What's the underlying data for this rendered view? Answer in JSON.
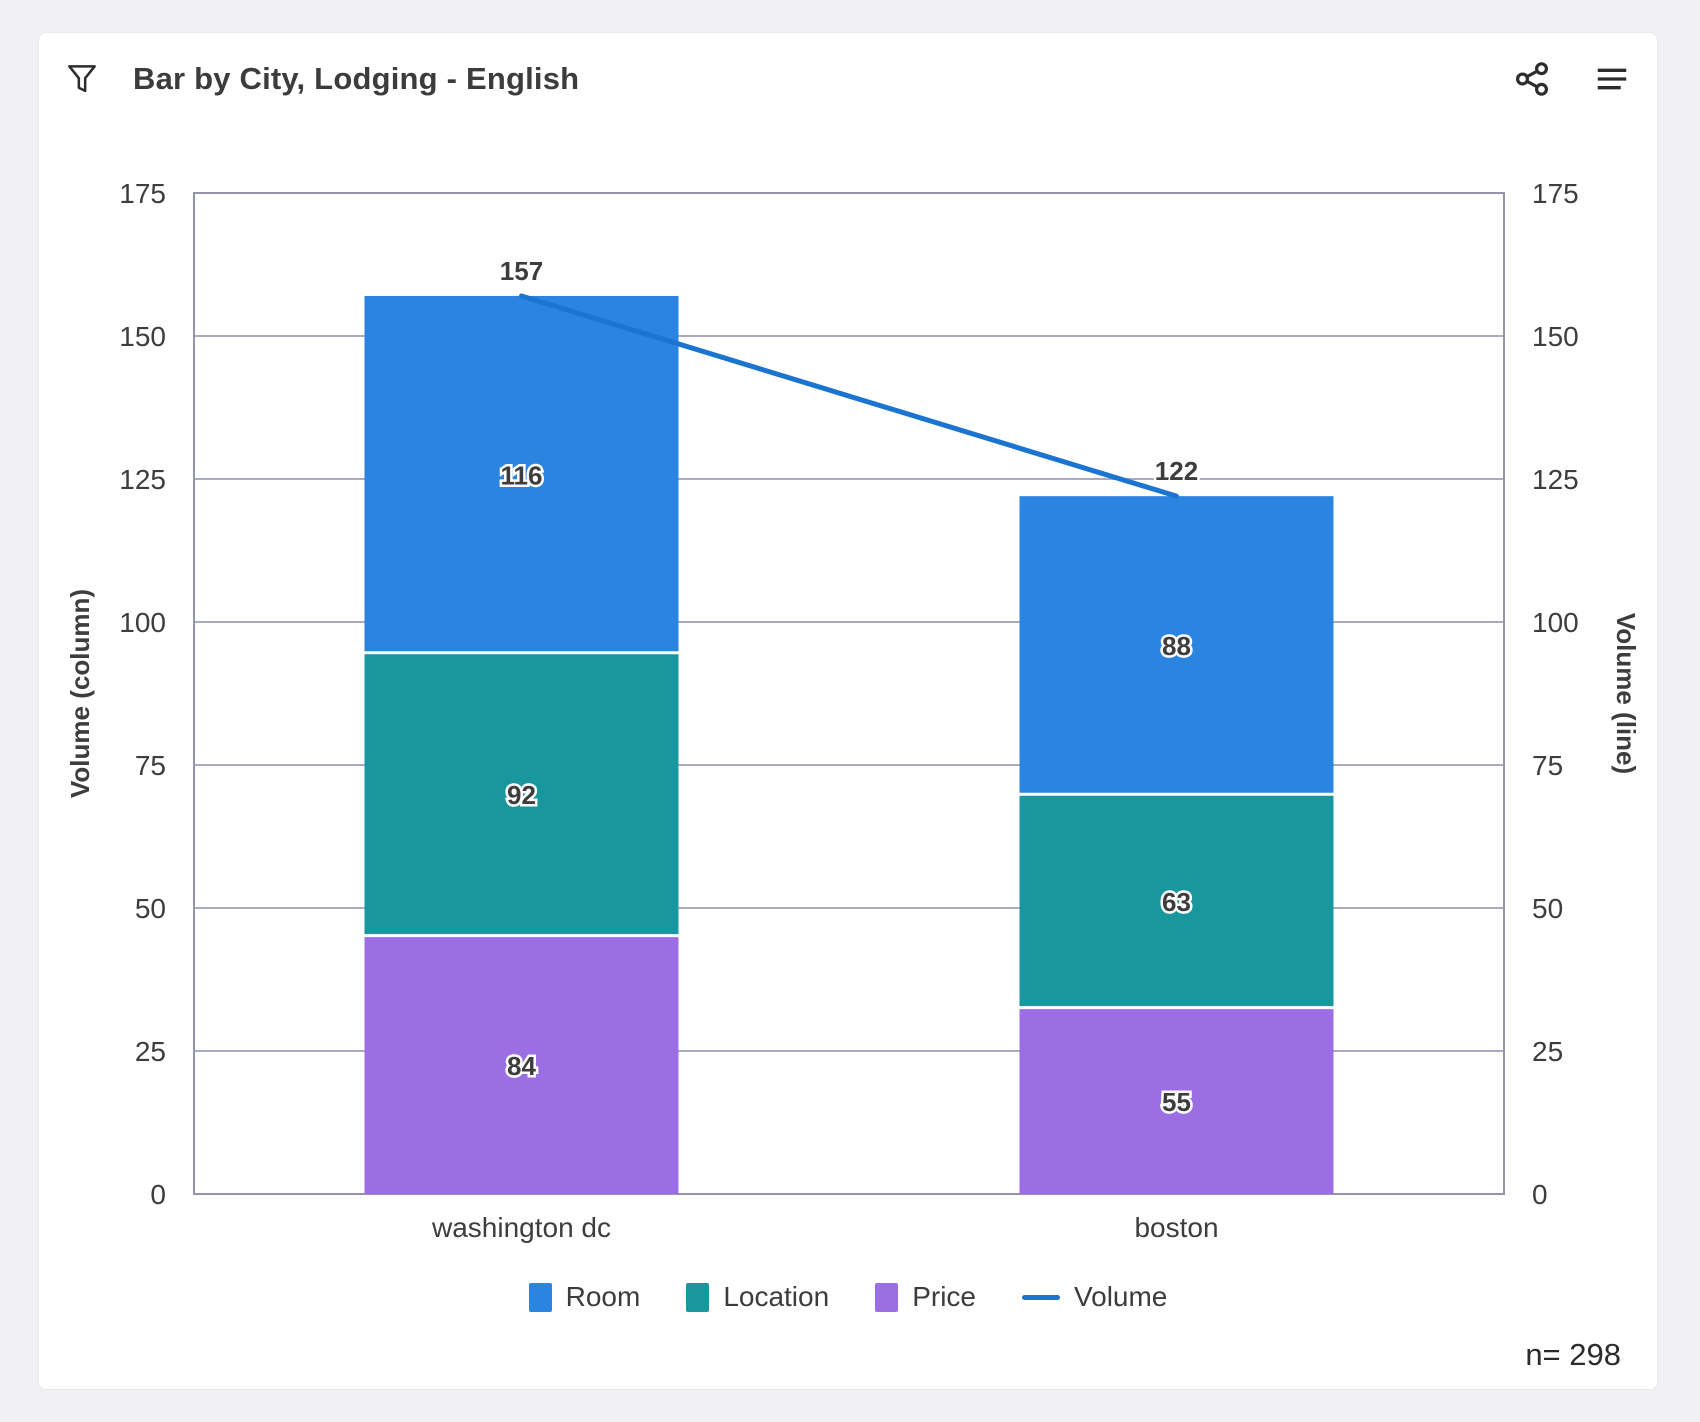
{
  "header": {
    "title": "Bar by City, Lodging - English",
    "filter_icon": "filter-funnel",
    "share_icon": "share-network",
    "menu_icon": "hamburger-menu"
  },
  "footer": {
    "sample_size": "n= 298"
  },
  "colors": {
    "room": "#2b85e0",
    "location": "#18979f",
    "price": "#9c6ee4",
    "volume_line": "#1b75d0",
    "gridline": "#ababbf",
    "axis_border": "#9494aa",
    "text": "#3d3d3d",
    "label_halo": "#ffffff"
  },
  "chart_data": {
    "type": "bar",
    "subtype": "stacked-bar-with-line-overlay",
    "title": "Bar by City, Lodging - English",
    "categories": [
      "washington dc",
      "boston"
    ],
    "series": [
      {
        "name": "Room",
        "type": "bar",
        "color": "#2b85e0",
        "values": [
          116,
          88
        ]
      },
      {
        "name": "Location",
        "type": "bar",
        "color": "#18979f",
        "values": [
          92,
          63
        ]
      },
      {
        "name": "Price",
        "type": "bar",
        "color": "#9c6ee4",
        "values": [
          84,
          55
        ]
      },
      {
        "name": "Volume",
        "type": "line",
        "color": "#1b75d0",
        "values": [
          157,
          122
        ]
      }
    ],
    "stack_order": [
      "Price",
      "Location",
      "Room"
    ],
    "bar_total_labels": [
      157,
      122
    ],
    "bar_scaling": "segment heights scaled so stacked bar total equals Volume line value",
    "ylabel_left": "Volume (column)",
    "ylabel_right": "Volume (line)",
    "ylim": [
      0,
      175
    ],
    "ytick_step": 25,
    "grid": "horizontal",
    "legend_position": "bottom",
    "legend_entries": [
      "Room",
      "Location",
      "Price",
      "Volume"
    ]
  }
}
